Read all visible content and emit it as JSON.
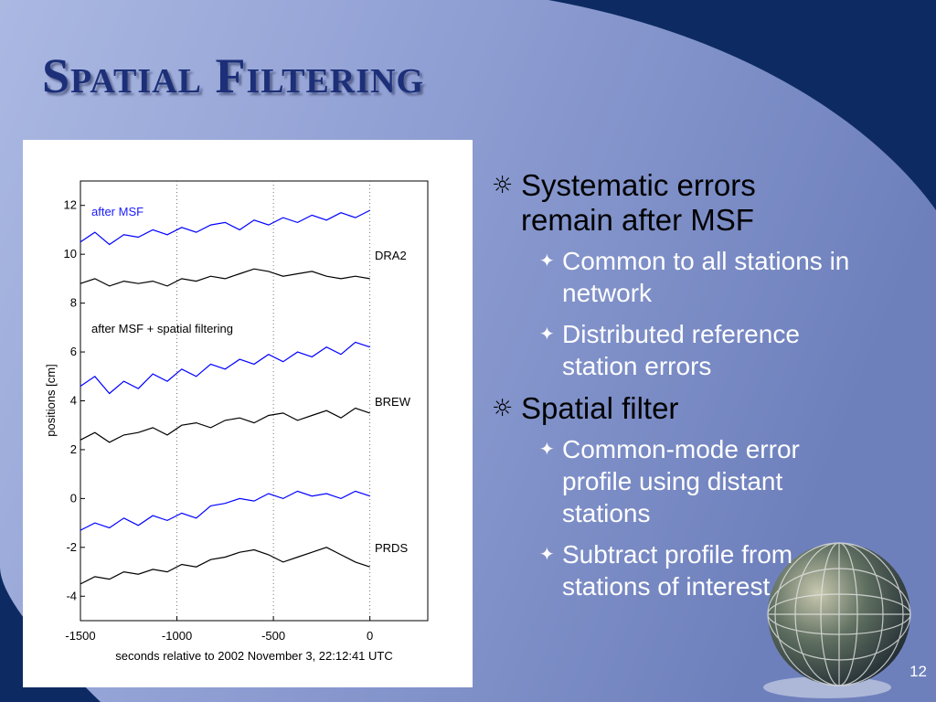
{
  "slide": {
    "title": "Spatial Filtering",
    "page_number": "12",
    "bullets": [
      {
        "text": "Systematic errors remain after MSF",
        "sub": [
          "Common to all stations in network",
          "Distributed reference station errors"
        ]
      },
      {
        "text": "Spatial filter",
        "sub": [
          "Common-mode error profile using distant stations",
          "Subtract profile from stations of interest"
        ]
      }
    ]
  },
  "chart_data": {
    "type": "line",
    "xlabel": "seconds relative to 2002 November 3, 22:12:41 UTC",
    "ylabel": "positions [cm]",
    "annotations": [
      {
        "text": "after MSF",
        "color": "#1a1aff"
      },
      {
        "text": "after MSF + spatial filtering",
        "color": "#000000"
      },
      {
        "text": "DRA2",
        "color": "#000000"
      },
      {
        "text": "BREW",
        "color": "#000000"
      },
      {
        "text": "PRDS",
        "color": "#000000"
      }
    ],
    "x": [
      -1500,
      -1425,
      -1350,
      -1275,
      -1200,
      -1125,
      -1050,
      -975,
      -900,
      -825,
      -750,
      -675,
      -600,
      -525,
      -450,
      -375,
      -300,
      -225,
      -150,
      -75,
      0
    ],
    "series": [
      {
        "color": "#0000ff",
        "values": [
          10.5,
          10.9,
          10.4,
          10.8,
          10.7,
          11.0,
          10.8,
          11.1,
          10.9,
          11.2,
          11.3,
          11.0,
          11.4,
          11.2,
          11.5,
          11.3,
          11.6,
          11.4,
          11.7,
          11.5,
          11.8
        ]
      },
      {
        "color": "#000000",
        "values": [
          8.8,
          9.0,
          8.7,
          8.9,
          8.8,
          8.9,
          8.7,
          9.0,
          8.9,
          9.1,
          9.0,
          9.2,
          9.4,
          9.3,
          9.1,
          9.2,
          9.3,
          9.1,
          9.0,
          9.1,
          9.0
        ]
      },
      {
        "color": "#0000ff",
        "values": [
          4.6,
          5.0,
          4.3,
          4.8,
          4.5,
          5.1,
          4.8,
          5.3,
          5.0,
          5.5,
          5.3,
          5.7,
          5.5,
          5.9,
          5.6,
          6.0,
          5.8,
          6.2,
          5.9,
          6.4,
          6.2
        ]
      },
      {
        "color": "#000000",
        "values": [
          2.4,
          2.7,
          2.3,
          2.6,
          2.7,
          2.9,
          2.6,
          3.0,
          3.1,
          2.9,
          3.2,
          3.3,
          3.1,
          3.4,
          3.5,
          3.2,
          3.4,
          3.6,
          3.3,
          3.7,
          3.5
        ]
      },
      {
        "color": "#0000ff",
        "values": [
          -1.3,
          -1.0,
          -1.2,
          -0.8,
          -1.1,
          -0.7,
          -0.9,
          -0.6,
          -0.8,
          -0.3,
          -0.2,
          0.0,
          -0.1,
          0.2,
          0.0,
          0.3,
          0.1,
          0.2,
          0.0,
          0.3,
          0.1
        ]
      },
      {
        "color": "#000000",
        "values": [
          -3.5,
          -3.2,
          -3.3,
          -3.0,
          -3.1,
          -2.9,
          -3.0,
          -2.7,
          -2.8,
          -2.5,
          -2.4,
          -2.2,
          -2.1,
          -2.3,
          -2.6,
          -2.4,
          -2.2,
          -2.0,
          -2.3,
          -2.6,
          -2.8
        ]
      }
    ],
    "xlim": [
      -1500,
      300
    ],
    "xticks": [
      -1500,
      -1000,
      -500,
      0
    ],
    "ylim": [
      -5,
      13
    ],
    "yticks": [
      -4,
      -2,
      0,
      2,
      4,
      6,
      8,
      10,
      12
    ],
    "grid": "x"
  }
}
